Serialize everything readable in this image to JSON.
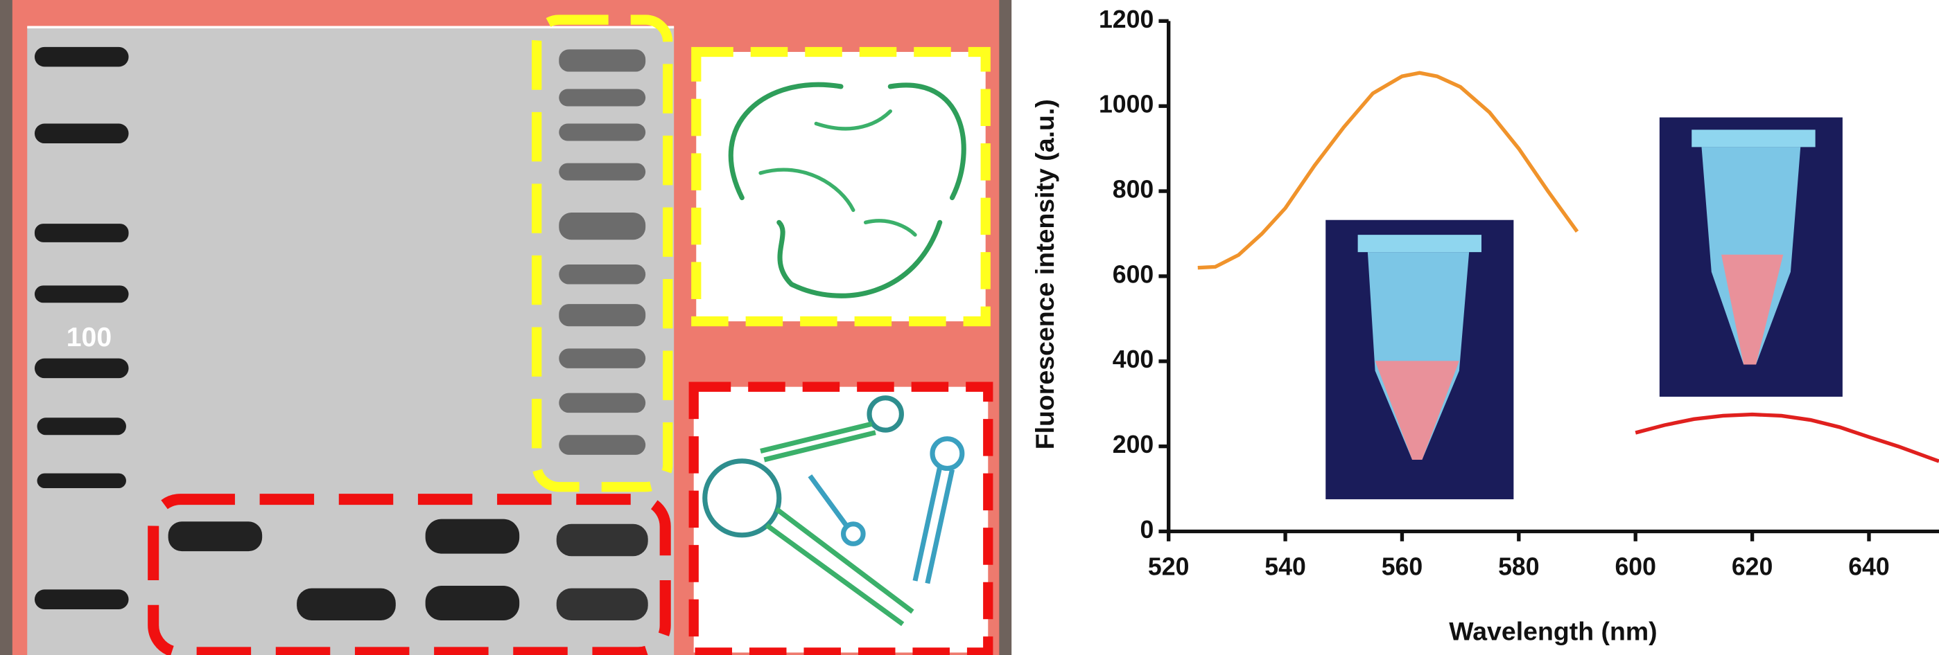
{
  "gel": {
    "ladder_label": "100"
  },
  "chart_data": {
    "type": "line",
    "xlabel": "Wavelength (nm)",
    "ylabel": "Fluorescence intensity (a.u.)",
    "xlim": [
      520,
      652
    ],
    "ylim": [
      0,
      1200
    ],
    "xticks": [
      520,
      540,
      560,
      580,
      600,
      620,
      640
    ],
    "yticks": [
      0,
      200,
      400,
      600,
      800,
      1000,
      1200
    ],
    "grid": false,
    "series": [
      {
        "color": "#f0932b",
        "x": [
          525,
          528,
          532,
          536,
          540,
          545,
          550,
          555,
          560,
          563,
          566,
          570,
          575,
          580,
          585,
          590
        ],
        "values": [
          620,
          622,
          650,
          700,
          760,
          860,
          950,
          1030,
          1070,
          1078,
          1070,
          1045,
          985,
          900,
          800,
          705
        ]
      },
      {
        "color": "#e0201e",
        "x": [
          600,
          605,
          610,
          615,
          620,
          625,
          630,
          635,
          640,
          645,
          652
        ],
        "values": [
          232,
          250,
          264,
          272,
          275,
          272,
          262,
          245,
          222,
          200,
          165
        ]
      }
    ]
  }
}
